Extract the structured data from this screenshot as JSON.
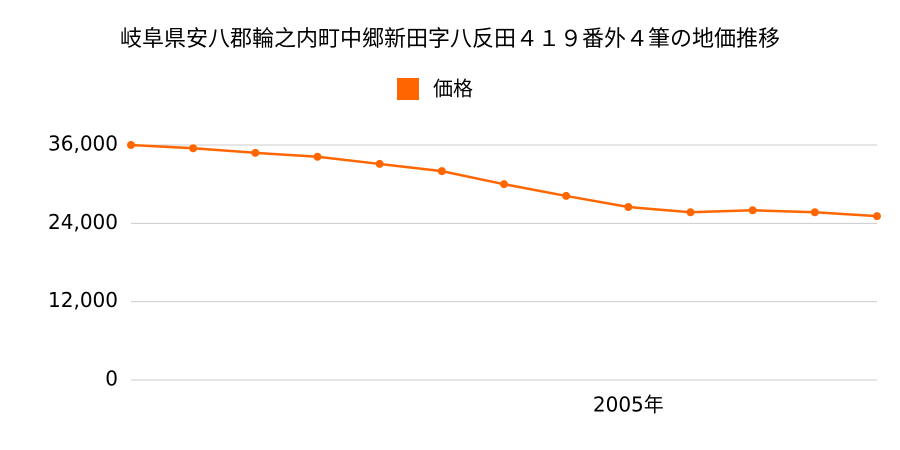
{
  "chart_data": {
    "type": "line",
    "title": "岐阜県安八郡輪之内町中郷新田字八反田４１９番外４筆の地価推移",
    "categories": [
      null,
      null,
      null,
      null,
      null,
      null,
      null,
      null,
      "2005年",
      null,
      null,
      null,
      null
    ],
    "series": [
      {
        "name": "価格",
        "color": "#ff6600",
        "values": [
          36000,
          35500,
          34800,
          34200,
          33100,
          32000,
          30000,
          28200,
          26500,
          25700,
          26000,
          25700,
          25100
        ]
      }
    ],
    "ylim": [
      0,
      36000
    ],
    "yticks": [
      {
        "value": 0,
        "label": "0"
      },
      {
        "value": 12000,
        "label": "12,000"
      },
      {
        "value": 24000,
        "label": "24,000"
      },
      {
        "value": 36000,
        "label": "36,000"
      }
    ],
    "grid": true,
    "legend": "top"
  }
}
